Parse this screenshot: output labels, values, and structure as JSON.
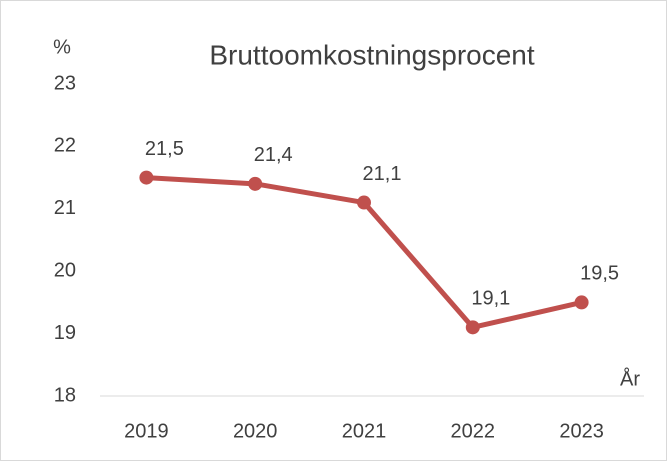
{
  "chart_data": {
    "type": "line",
    "title": "Bruttoomkostningsprocent",
    "y_label": "%",
    "x_label": "År",
    "categories": [
      "2019",
      "2020",
      "2021",
      "2022",
      "2023"
    ],
    "values": [
      21.5,
      21.4,
      21.1,
      19.1,
      19.5
    ],
    "value_labels": [
      "21,5",
      "21,4",
      "21,1",
      "19,1",
      "19,5"
    ],
    "color": "#c0504d",
    "ylim": [
      18,
      23
    ],
    "yticks": [
      18,
      19,
      20,
      21,
      22,
      23
    ],
    "grid": false
  }
}
